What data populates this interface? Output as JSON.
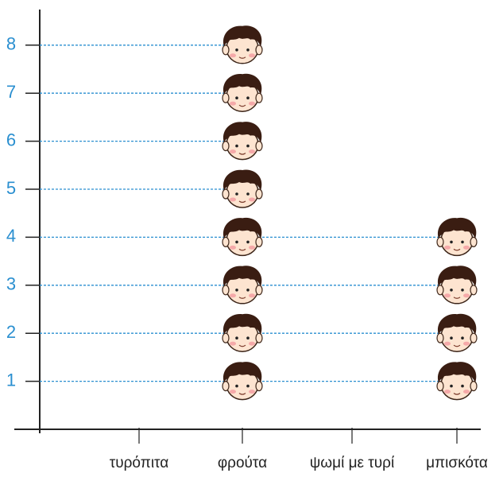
{
  "chart_data": {
    "type": "pictograph",
    "categories": [
      "τυρόπιτα",
      "φρούτα",
      "ψωμί με τυρί",
      "μπισκότα"
    ],
    "values": [
      0,
      8,
      0,
      4
    ],
    "ylim": [
      0,
      9
    ],
    "yticks": [
      1,
      2,
      3,
      4,
      5,
      6,
      7,
      8
    ],
    "grid": true,
    "color": "#2a8fd0"
  }
}
